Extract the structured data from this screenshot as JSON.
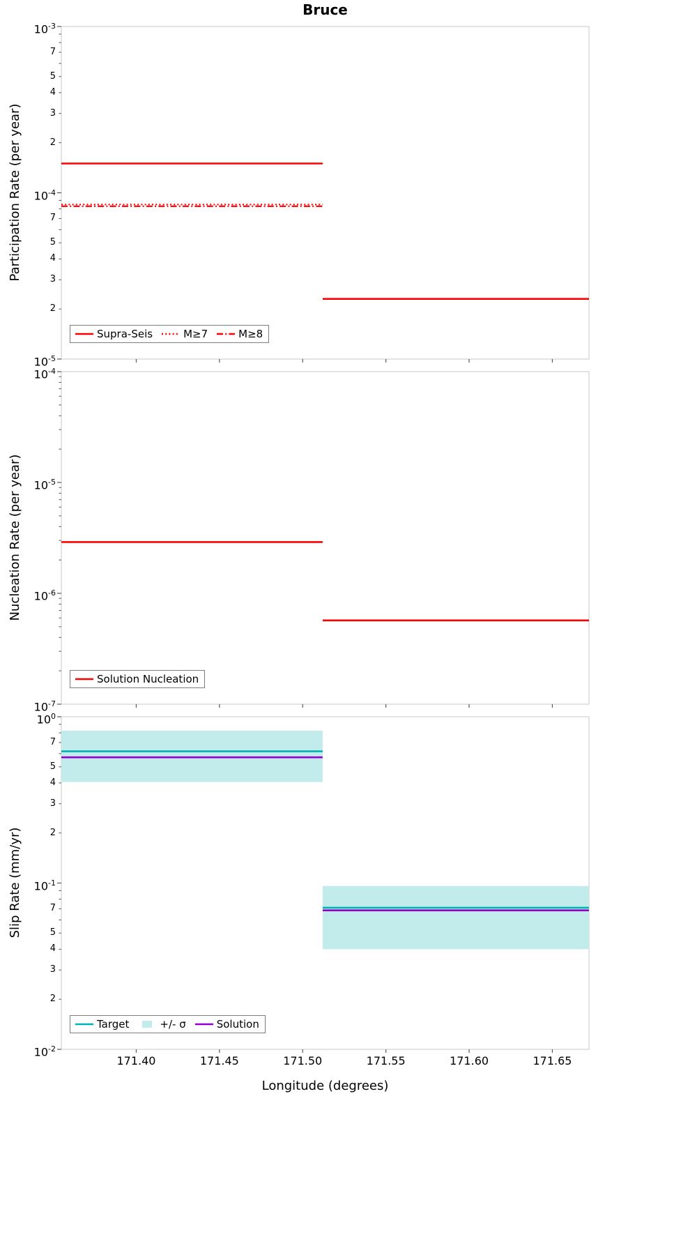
{
  "title": "Bruce",
  "xlabel": "Longitude (degrees)",
  "xlim": [
    171.355,
    171.672
  ],
  "x_ticks": [
    "171.40",
    "171.45",
    "171.50",
    "171.55",
    "171.60",
    "171.65"
  ],
  "colors": {
    "series_red": "#ff0000",
    "target_teal": "#00b2b2",
    "sigma_band": "#c2ecec",
    "solution_purple": "#9400d3",
    "frame": "#c9c9c9",
    "tick": "#595959",
    "text": "#000000"
  },
  "chart_data": [
    {
      "type": "line",
      "panel": "participation",
      "ylabel": "Participation Rate (per year)",
      "yscale": "log",
      "ylim": [
        1e-05,
        0.001
      ],
      "grid": false,
      "legend_position": "lower left",
      "minor_tick_labels": [
        7,
        5,
        4,
        3,
        2
      ],
      "legend": [
        {
          "label": "Supra-Seis",
          "style": "solid",
          "color": "series_red"
        },
        {
          "label": "M≥7",
          "style": "dotted",
          "color": "series_red"
        },
        {
          "label": "M≥8",
          "style": "dashdot",
          "color": "series_red"
        }
      ],
      "series": [
        {
          "name": "Supra-Seis",
          "style": "solid",
          "color": "series_red",
          "segments": [
            {
              "x0": 171.355,
              "x1": 171.512,
              "y": 0.00015
            },
            {
              "x0": 171.512,
              "x1": 171.672,
              "y": 2.3e-05
            }
          ]
        },
        {
          "name": "M≥7",
          "style": "dotted",
          "color": "series_red",
          "segments": [
            {
              "x0": 171.355,
              "x1": 171.512,
              "y": 8.5e-05
            }
          ]
        },
        {
          "name": "M≥8",
          "style": "dashdot",
          "color": "series_red",
          "segments": [
            {
              "x0": 171.355,
              "x1": 171.512,
              "y": 8.3e-05
            }
          ]
        }
      ]
    },
    {
      "type": "line",
      "panel": "nucleation",
      "ylabel": "Nucleation Rate (per year)",
      "yscale": "log",
      "ylim": [
        1e-07,
        0.0001
      ],
      "grid": false,
      "legend_position": "lower left",
      "minor_tick_labels": [],
      "legend": [
        {
          "label": "Solution Nucleation",
          "style": "solid",
          "color": "series_red"
        }
      ],
      "series": [
        {
          "name": "Solution Nucleation",
          "style": "solid",
          "color": "series_red",
          "segments": [
            {
              "x0": 171.355,
              "x1": 171.512,
              "y": 2.9e-06
            },
            {
              "x0": 171.512,
              "x1": 171.672,
              "y": 5.7e-07
            }
          ]
        }
      ]
    },
    {
      "type": "line",
      "panel": "slip-rate",
      "ylabel": "Slip Rate (mm/yr)",
      "yscale": "log",
      "ylim": [
        0.01,
        1
      ],
      "grid": false,
      "legend_position": "lower left",
      "minor_tick_labels": [
        7,
        5,
        4,
        3,
        2
      ],
      "legend": [
        {
          "label": "Target",
          "style": "solid",
          "color": "target_teal"
        },
        {
          "label": "+/- σ",
          "style": "band",
          "color": "sigma_band"
        },
        {
          "label": "Solution",
          "style": "solid",
          "color": "solution_purple"
        }
      ],
      "series": [
        {
          "name": "+/- σ",
          "style": "band",
          "color": "sigma_band",
          "segments": [
            {
              "x0": 171.355,
              "x1": 171.512,
              "ylo": 0.405,
              "yhi": 0.825
            },
            {
              "x0": 171.512,
              "x1": 171.672,
              "ylo": 0.04,
              "yhi": 0.096
            }
          ]
        },
        {
          "name": "Target",
          "style": "solid",
          "color": "target_teal",
          "segments": [
            {
              "x0": 171.355,
              "x1": 171.512,
              "y": 0.62
            },
            {
              "x0": 171.512,
              "x1": 171.672,
              "y": 0.071
            }
          ]
        },
        {
          "name": "Solution",
          "style": "solid",
          "color": "solution_purple",
          "segments": [
            {
              "x0": 171.355,
              "x1": 171.512,
              "y": 0.57
            },
            {
              "x0": 171.512,
              "x1": 171.672,
              "y": 0.0685
            }
          ]
        }
      ]
    }
  ]
}
